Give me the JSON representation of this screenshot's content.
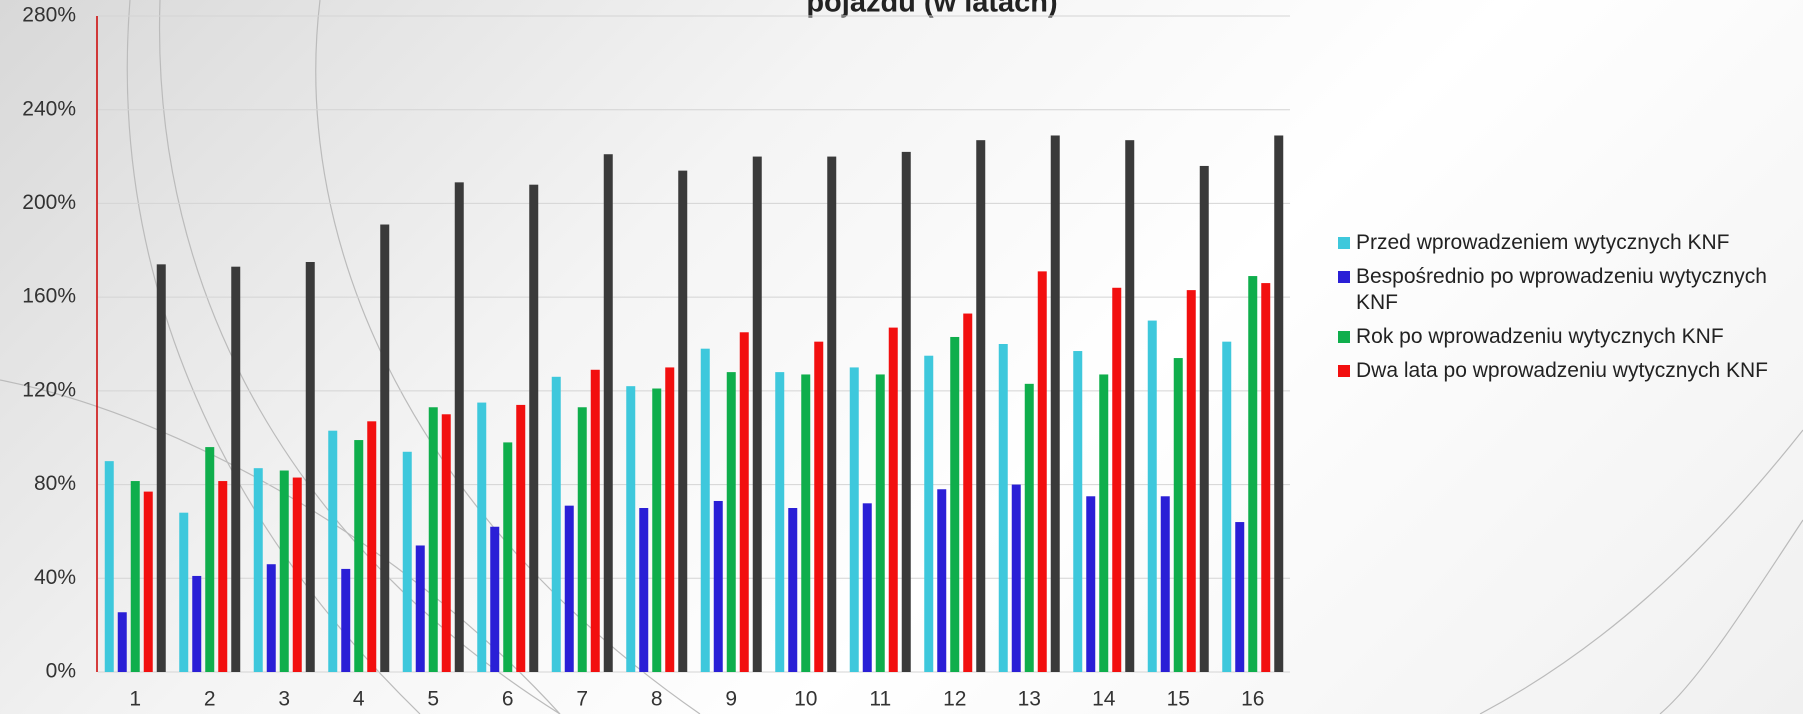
{
  "chart_data": {
    "type": "bar",
    "title": "pojazdu (w latach)",
    "categories": [
      "1",
      "2",
      "3",
      "4",
      "5",
      "6",
      "7",
      "8",
      "9",
      "10",
      "11",
      "12",
      "13",
      "14",
      "15",
      "16"
    ],
    "series": [
      {
        "name": "Przed wprowadzeniem wytycznych KNF",
        "color": "#3ec8dc",
        "values": [
          90,
          68,
          87,
          103,
          94,
          115,
          126,
          122,
          138,
          128,
          130,
          135,
          140,
          137,
          150,
          141
        ]
      },
      {
        "name": "Bespośrednio po wprowadzeniu wytycznych KNF",
        "color": "#2a1fd6",
        "values": [
          25.5,
          41,
          46,
          44,
          54,
          62,
          71,
          70,
          73,
          70,
          72,
          78,
          80,
          75,
          75,
          64
        ]
      },
      {
        "name": "Rok po wprowadzeniu wytycznych KNF",
        "color": "#0fae4c",
        "values": [
          81.5,
          96,
          86,
          99,
          113,
          98,
          113,
          121,
          128,
          127,
          127,
          143,
          123,
          127,
          134,
          169
        ]
      },
      {
        "name": "Dwa lata po wprowadzeniu wytycznych KNF",
        "color": "#f20f0f",
        "values": [
          77,
          81.5,
          83,
          107,
          110,
          114,
          129,
          130,
          145,
          141,
          147,
          153,
          171,
          164,
          163,
          166
        ]
      },
      {
        "color": "#3a3a3a",
        "values": [
          174,
          173,
          175,
          191,
          209,
          208,
          221,
          214,
          220,
          220,
          222,
          227,
          229,
          227,
          216,
          229
        ]
      }
    ],
    "ylim": [
      0,
      280
    ],
    "yticks": [
      {
        "value": 0,
        "label": "0%"
      },
      {
        "value": 40,
        "label": "40%"
      },
      {
        "value": 80,
        "label": "80%"
      },
      {
        "value": 120,
        "label": "120%"
      },
      {
        "value": 160,
        "label": "160%"
      },
      {
        "value": 200,
        "label": "200%"
      },
      {
        "value": 240,
        "label": "240%"
      },
      {
        "value": 280,
        "label": "280%"
      }
    ],
    "grid": true,
    "legend": "right"
  }
}
